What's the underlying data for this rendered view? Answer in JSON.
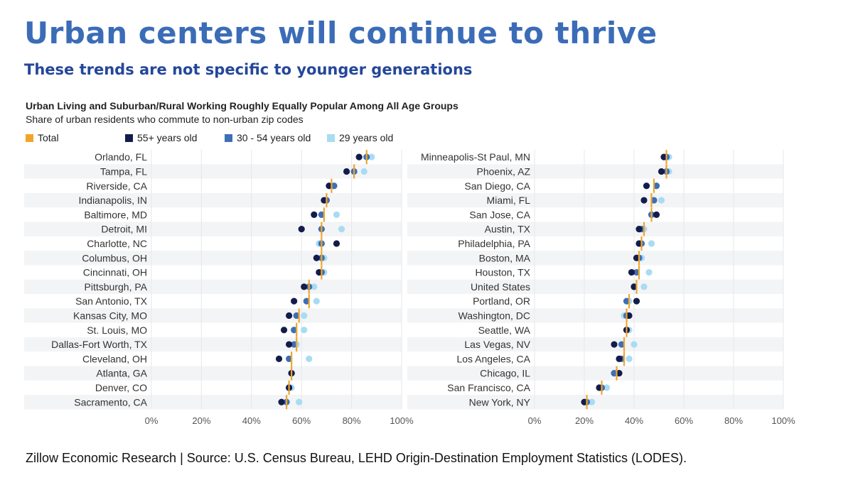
{
  "header": {
    "title": "Urban centers will continue to thrive",
    "subtitle": "These trends are not specific to younger generations"
  },
  "chart_heading": "Urban Living and Suburban/Rural Working Roughly Equally Popular Among All Age Groups",
  "chart_subheading": "Share of urban residents who commute to non-urban zip codes",
  "legend": [
    {
      "key": "total",
      "label": "Total",
      "color": "#f0a52a"
    },
    {
      "key": "a55",
      "label": "55+ years old",
      "color": "#141c4c"
    },
    {
      "key": "a30",
      "label": "30 - 54 years old",
      "color": "#3e6fb5"
    },
    {
      "key": "a29",
      "label": "29 years old",
      "color": "#a8dcf3"
    }
  ],
  "chart_data": [
    {
      "type": "scatter",
      "x_ticks": [
        "0%",
        "20%",
        "40%",
        "60%",
        "80%",
        "100%"
      ],
      "xlim": [
        0,
        100
      ],
      "categories": [
        "Orlando, FL",
        "Tampa, FL",
        "Riverside, CA",
        "Indianapolis, IN",
        "Baltimore, MD",
        "Detroit, MI",
        "Charlotte, NC",
        "Columbus, OH",
        "Cincinnati, OH",
        "Pittsburgh, PA",
        "San Antonio, TX",
        "Kansas City, MO",
        "St. Louis, MO",
        "Dallas-Fort Worth, TX",
        "Cleveland, OH",
        "Atlanta, GA",
        "Denver, CO",
        "Sacramento, CA"
      ],
      "series": [
        {
          "name": "Total",
          "values": [
            86,
            81,
            72,
            70,
            69,
            68,
            68,
            68,
            68,
            63,
            63,
            59,
            58,
            58,
            56,
            56,
            55,
            54
          ]
        },
        {
          "name": "55+ years old",
          "values": [
            83,
            78,
            71,
            69,
            65,
            60,
            74,
            66,
            67,
            61,
            57,
            55,
            53,
            55,
            51,
            56,
            55,
            52
          ]
        },
        {
          "name": "30 - 54 years old",
          "values": [
            86,
            81,
            73,
            70,
            68,
            68,
            68,
            68,
            68,
            63,
            62,
            58,
            57,
            57,
            55,
            56,
            55,
            54
          ]
        },
        {
          "name": "29 years old",
          "values": [
            88,
            85,
            73,
            70,
            74,
            76,
            67,
            69,
            69,
            65,
            66,
            61,
            61,
            58,
            63,
            56,
            56,
            59
          ]
        }
      ]
    },
    {
      "type": "scatter",
      "x_ticks": [
        "0%",
        "20%",
        "40%",
        "60%",
        "80%",
        "100%"
      ],
      "xlim": [
        0,
        100
      ],
      "categories": [
        "Minneapolis-St Paul, MN",
        "Phoenix, AZ",
        "San Diego, CA",
        "Miami, FL",
        "San Jose, CA",
        "Austin, TX",
        "Philadelphia, PA",
        "Boston, MA",
        "Houston, TX",
        "United States",
        "Portland, OR",
        "Washington, DC",
        "Seattle, WA",
        "Las Vegas, NV",
        "Los Angeles, CA",
        "Chicago, IL",
        "San Francisco, CA",
        "New York, NY"
      ],
      "series": [
        {
          "name": "Total",
          "values": [
            53,
            53,
            48,
            47,
            47,
            44,
            43,
            42,
            42,
            41,
            38,
            37,
            37,
            36,
            36,
            33,
            27,
            21
          ]
        },
        {
          "name": "55+ years old",
          "values": [
            52,
            51,
            45,
            44,
            49,
            42,
            42,
            41,
            39,
            40,
            41,
            38,
            37,
            32,
            34,
            34,
            26,
            20
          ]
        },
        {
          "name": "30 - 54 years old",
          "values": [
            53,
            53,
            49,
            48,
            47,
            43,
            43,
            42,
            41,
            40,
            37,
            37,
            37,
            35,
            35,
            32,
            27,
            21
          ]
        },
        {
          "name": "29 years old",
          "values": [
            54,
            54,
            49,
            51,
            47,
            44,
            47,
            43,
            46,
            44,
            38,
            36,
            38,
            40,
            38,
            32,
            29,
            23
          ]
        }
      ]
    }
  ],
  "footer": "Zillow Economic Research | Source: U.S. Census Bureau, LEHD Origin-Destination Employment Statistics (LODES)."
}
